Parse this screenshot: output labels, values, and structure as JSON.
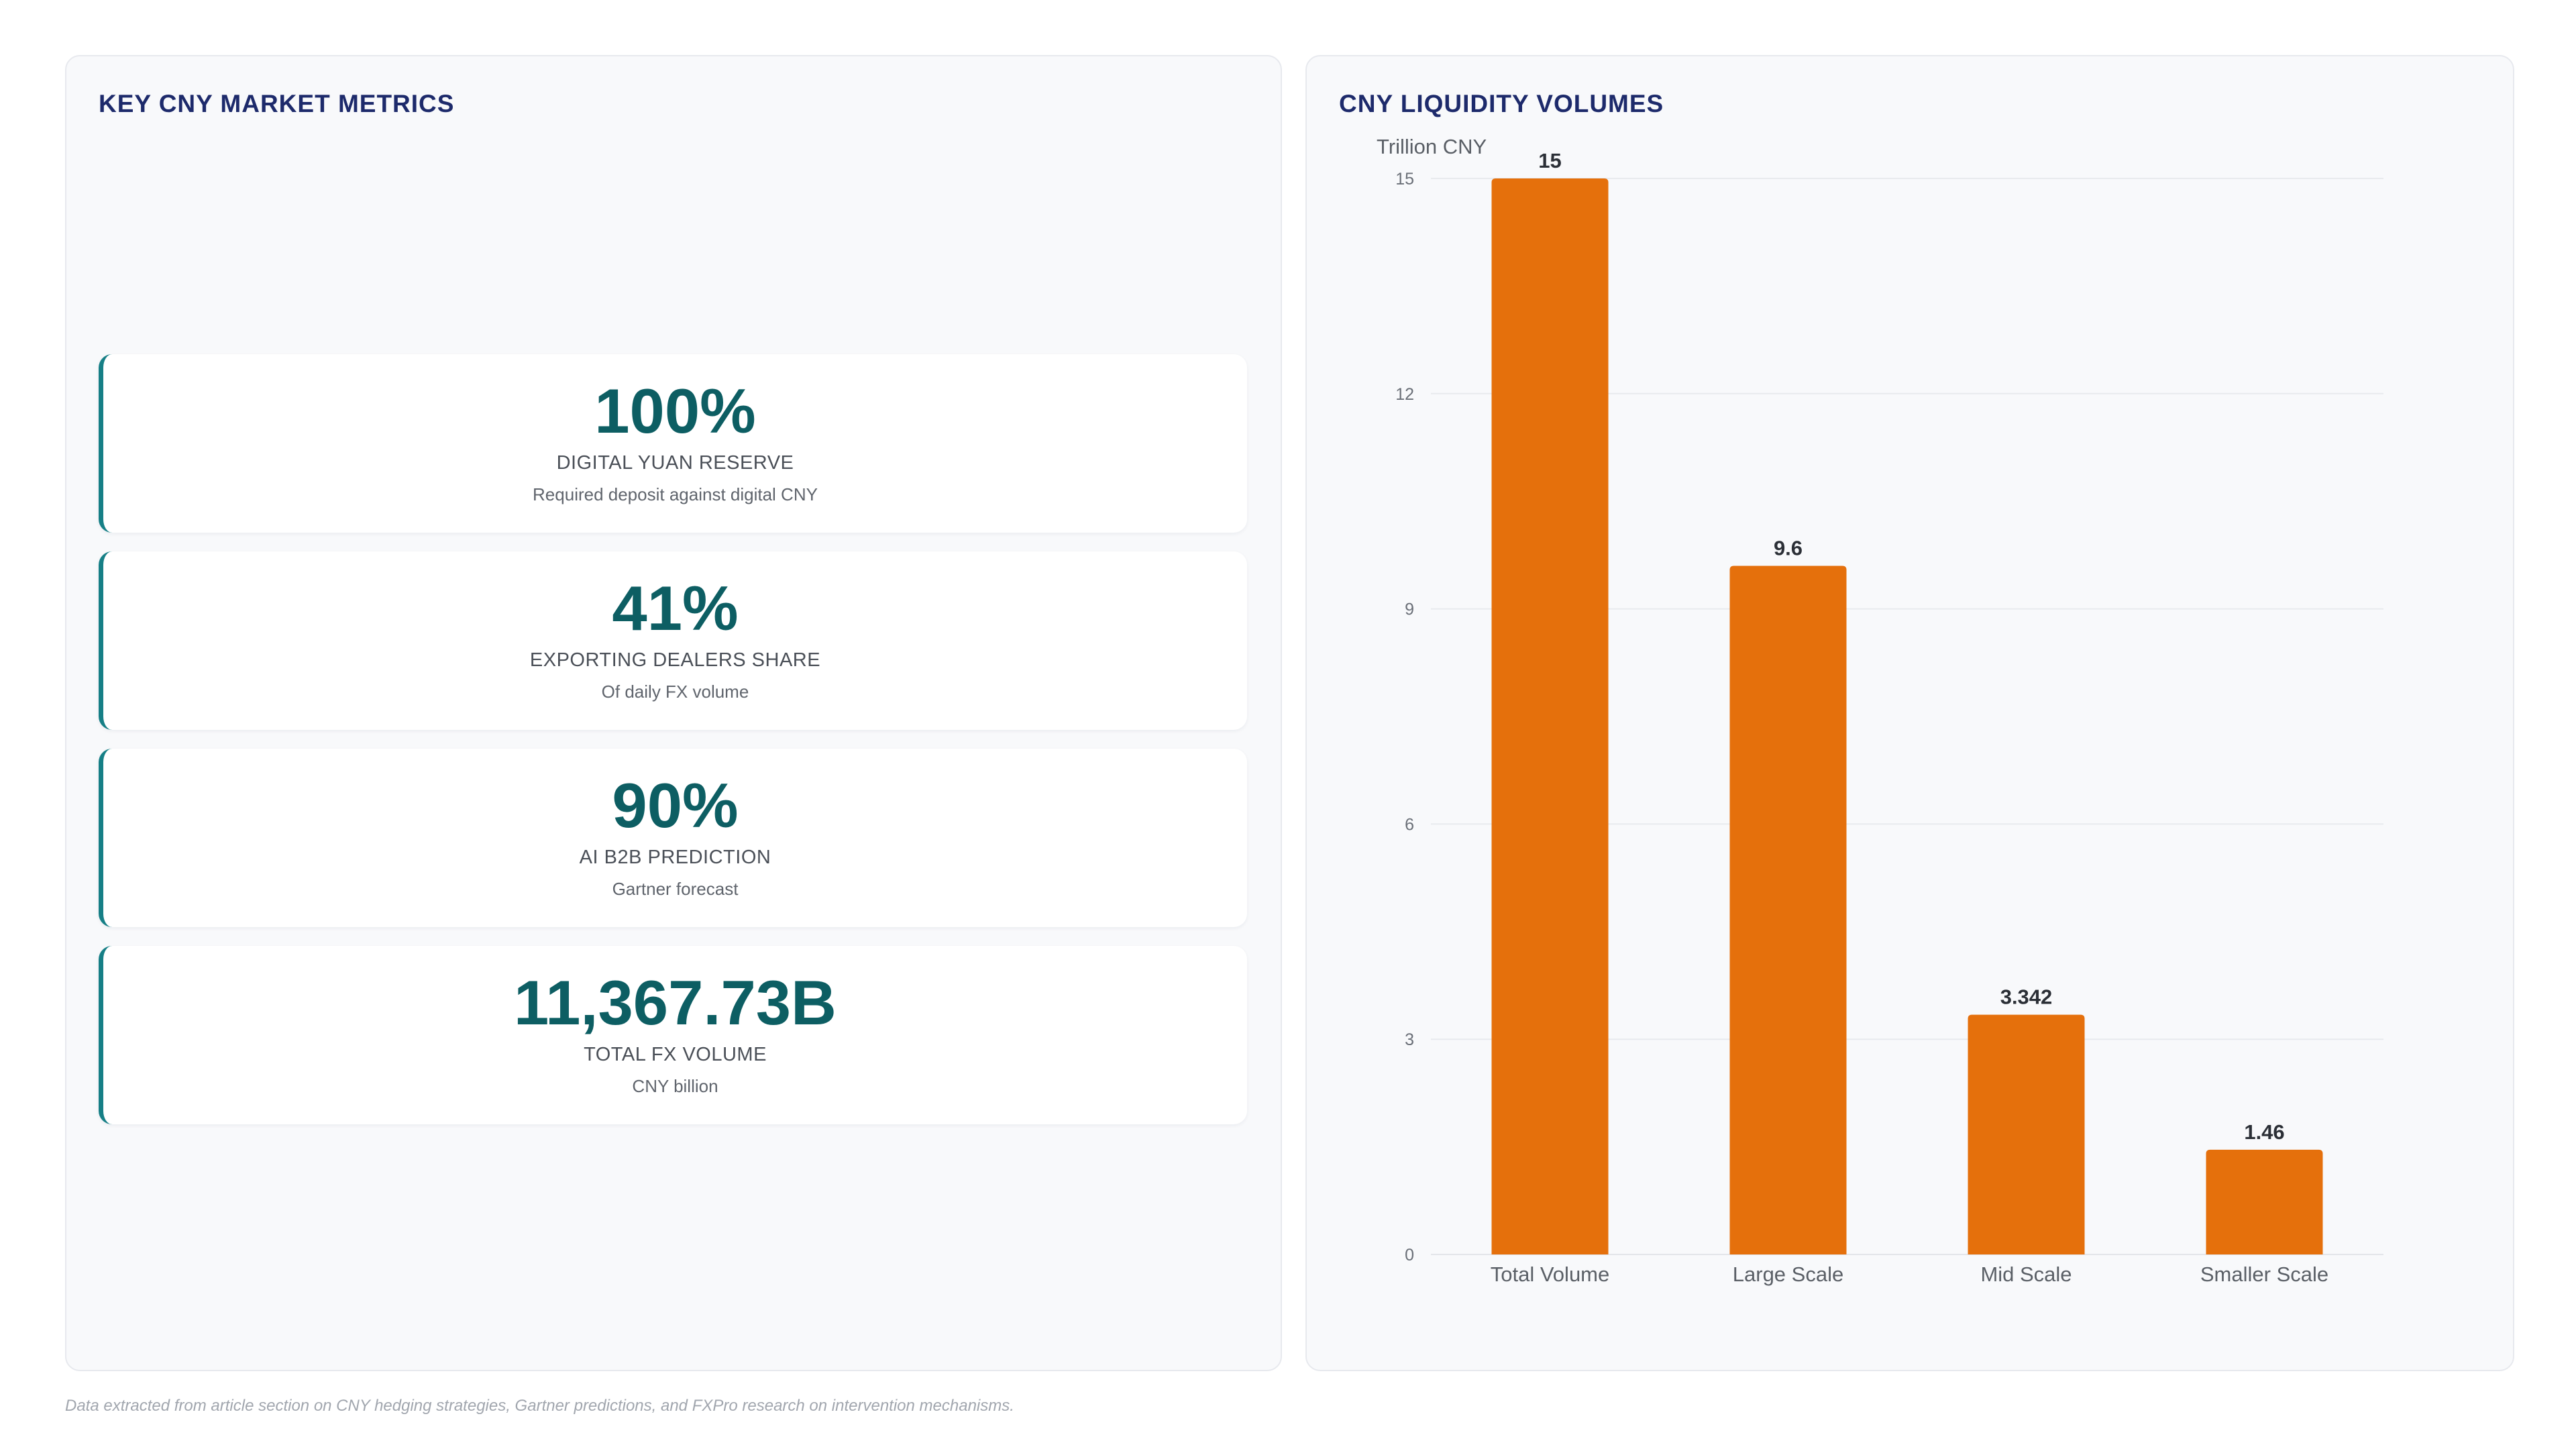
{
  "left_panel": {
    "title": "KEY CNY MARKET METRICS",
    "cards": [
      {
        "value": "100%",
        "label": "DIGITAL YUAN RESERVE",
        "sub": "Required deposit against digital CNY"
      },
      {
        "value": "41%",
        "label": "EXPORTING DEALERS SHARE",
        "sub": "Of daily FX volume"
      },
      {
        "value": "90%",
        "label": "AI B2B PREDICTION",
        "sub": "Gartner forecast"
      },
      {
        "value": "11,367.73B",
        "label": "TOTAL FX VOLUME",
        "sub": "CNY billion"
      }
    ]
  },
  "right_panel": {
    "title": "CNY LIQUIDITY VOLUMES"
  },
  "chart_data": {
    "type": "bar",
    "ylabel": "Trillion CNY",
    "xlabel": "",
    "categories": [
      "Total Volume",
      "Large Scale",
      "Mid Scale",
      "Smaller Scale"
    ],
    "values": [
      15,
      9.6,
      3.342,
      1.46
    ],
    "value_labels": [
      "15",
      "9.6",
      "3.342",
      "1.46"
    ],
    "ylim": [
      0,
      15
    ],
    "yticks": [
      0,
      3,
      6,
      9,
      12,
      15
    ],
    "grid": true,
    "bar_color": "#e5700c"
  },
  "footnote": "Data extracted from article section on CNY hedging strategies, Gartner predictions, and FXPro research on intervention mechanisms."
}
